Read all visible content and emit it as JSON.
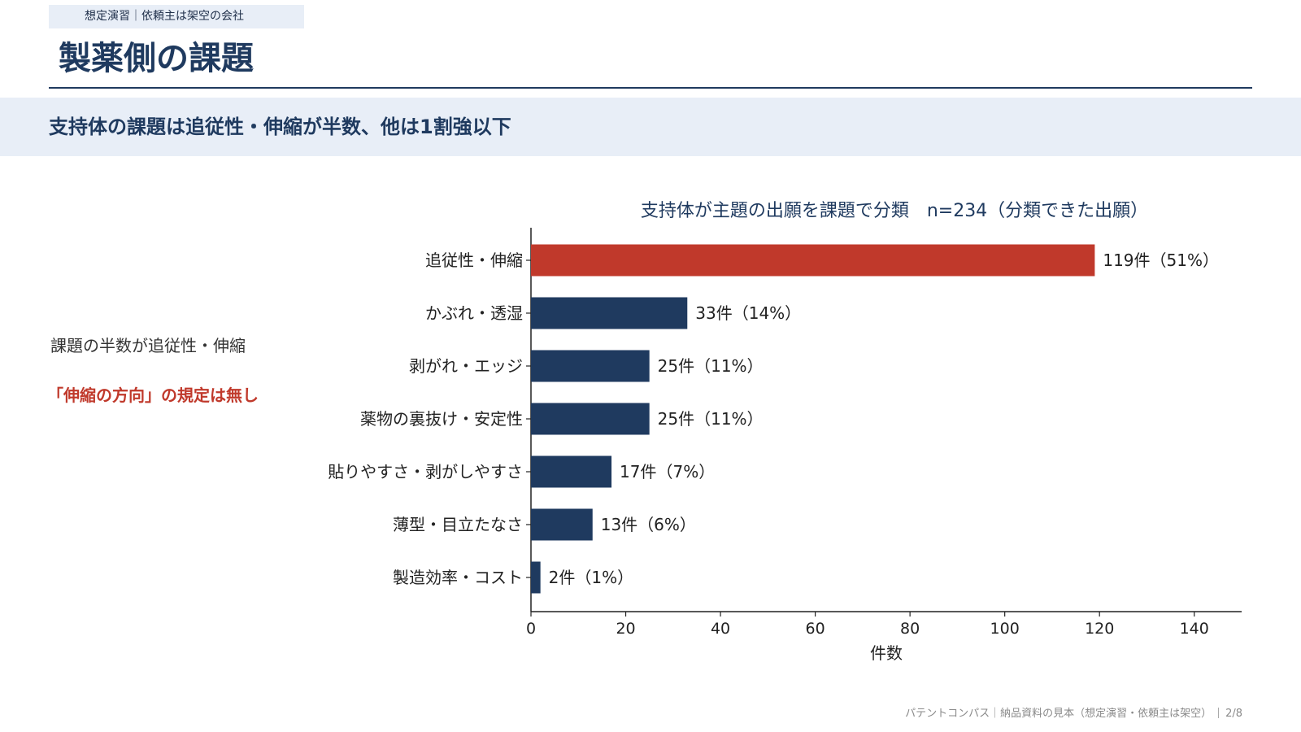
{
  "header": {
    "tag": "想定演習｜依頼主は架空の会社",
    "title": "製薬側の課題"
  },
  "headline": "支持体の課題は追従性・伸縮が半数、他は1割強以下",
  "notes": {
    "line1": "課題の半数が追従性・伸縮",
    "line2": "「伸縮の方向」の規定は無し"
  },
  "colors": {
    "highlight": "#c0392b",
    "bar": "#1f3a5f",
    "accent_band": "#e8eef7"
  },
  "chart_data": {
    "type": "bar",
    "orientation": "horizontal",
    "title": "支持体が主題の出願を課題で分類　n=234（分類できた出願）",
    "xlabel": "件数",
    "ylabel": "",
    "xlim": [
      0,
      150
    ],
    "xticks": [
      0,
      20,
      40,
      60,
      80,
      100,
      120,
      140
    ],
    "grid": false,
    "categories": [
      "追従性・伸縮",
      "かぶれ・透湿",
      "剥がれ・エッジ",
      "薬物の裏抜け・安定性",
      "貼りやすさ・剥がしやすさ",
      "薄型・目立たなさ",
      "製造効率・コスト"
    ],
    "values": [
      119,
      33,
      25,
      25,
      17,
      13,
      2
    ],
    "data_labels": [
      "119件（51%）",
      "33件（14%）",
      "25件（11%）",
      "25件（11%）",
      "17件（7%）",
      "13件（6%）",
      "2件（1%）"
    ],
    "highlight_index": 0
  },
  "footer": {
    "text": "パテントコンパス｜納品資料の見本（想定演習・依頼主は架空）",
    "page": "2/8"
  }
}
